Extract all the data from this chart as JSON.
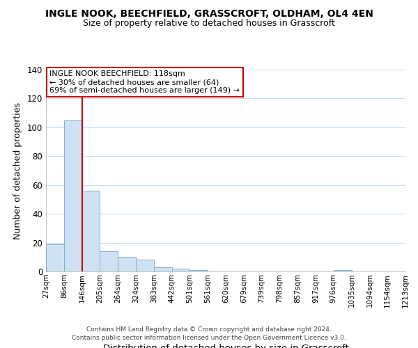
{
  "title": "INGLE NOOK, BEECHFIELD, GRASSCROFT, OLDHAM, OL4 4EN",
  "subtitle": "Size of property relative to detached houses in Grasscroft",
  "xlabel": "Distribution of detached houses by size in Grasscroft",
  "ylabel": "Number of detached properties",
  "bar_values": [
    19,
    105,
    56,
    14,
    10,
    8,
    3,
    2,
    1,
    0,
    0,
    0,
    0,
    0,
    0,
    0,
    1
  ],
  "bar_color": "#cfe2f3",
  "bar_edge_color": "#7bafd4",
  "xlabels": [
    "27sqm",
    "86sqm",
    "146sqm",
    "205sqm",
    "264sqm",
    "324sqm",
    "383sqm",
    "442sqm",
    "501sqm",
    "561sqm",
    "620sqm",
    "679sqm",
    "739sqm",
    "798sqm",
    "857sqm",
    "917sqm",
    "976sqm",
    "1035sqm",
    "1094sqm",
    "1154sqm",
    "1213sqm"
  ],
  "ylim": [
    0,
    140
  ],
  "yticks": [
    0,
    20,
    40,
    60,
    80,
    100,
    120,
    140
  ],
  "vline_x": 2,
  "vline_color": "#cc0000",
  "annotation_title": "INGLE NOOK BEECHFIELD: 118sqm",
  "annotation_line1": "← 30% of detached houses are smaller (64)",
  "annotation_line2": "69% of semi-detached houses are larger (149) →",
  "annotation_box_color": "#ffffff",
  "annotation_box_edge": "#cc0000",
  "footer_line1": "Contains HM Land Registry data © Crown copyright and database right 2024.",
  "footer_line2": "Contains public sector information licensed under the Open Government Licence v3.0.",
  "background_color": "#ffffff",
  "grid_color": "#c8dff0"
}
